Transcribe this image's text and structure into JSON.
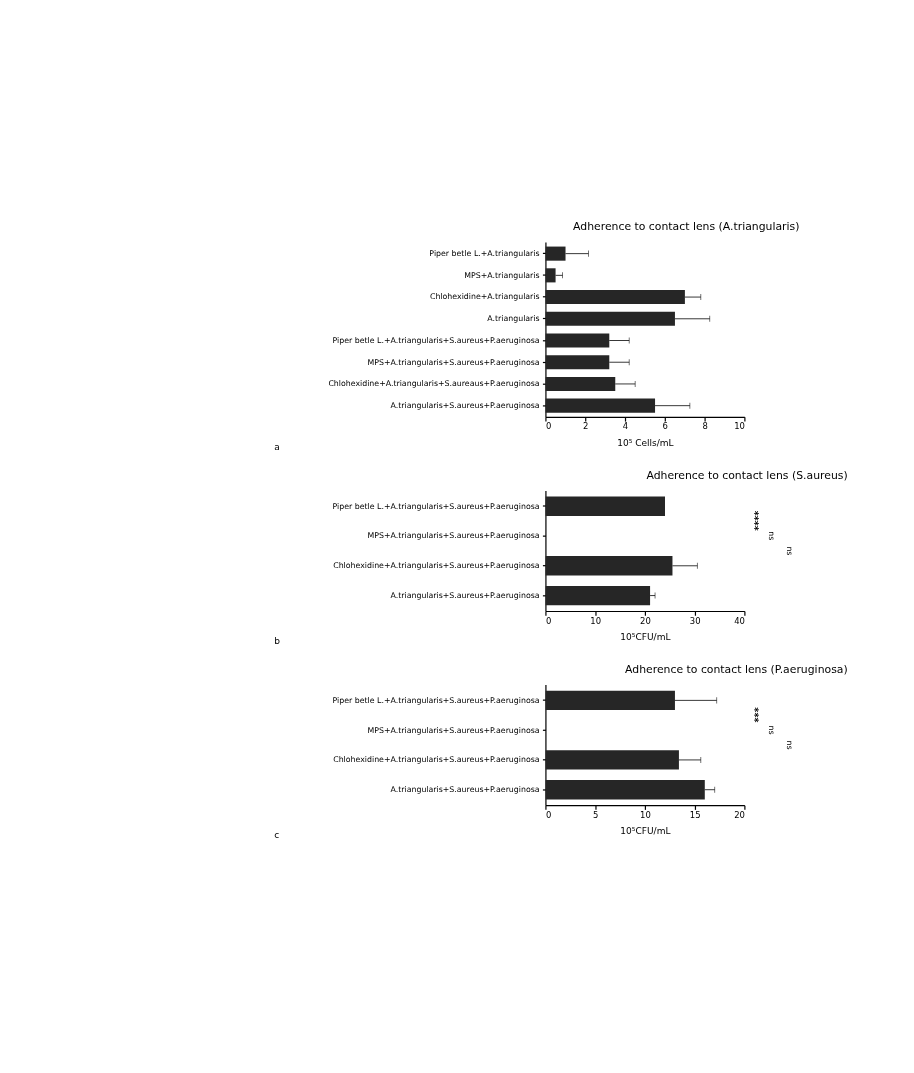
{
  "chart_data": [
    {
      "type": "bar",
      "orientation": "horizontal",
      "title": "Adherence to contact lens (A.triangularis)",
      "xlabel": "10⁵ Cells/mL",
      "categories": [
        "Piper betle L.+A.triangularis",
        "MPS+A.triangularis",
        "Chlohexidine+A.triangularis",
        "A.triangularis",
        "Piper betle L.+A.triangularis+S.aureus+P.aeruginosa",
        "MPS+A.triangularis+S.aureus+P.aeruginosa",
        "Chlohexidine+A.triangularis+S.aureaus+P.aeruginosa",
        "A.triangularis+S.aureus+P.aeruginosa"
      ],
      "values": [
        1.0,
        0.5,
        7.0,
        6.5,
        3.2,
        3.2,
        3.5,
        5.5
      ],
      "errors": [
        [
          1.0,
          2.15
        ],
        [
          0.5,
          0.85
        ],
        [
          7.0,
          7.8
        ],
        [
          6.5,
          8.25
        ],
        [
          3.2,
          4.2
        ],
        [
          3.2,
          4.2
        ],
        [
          3.5,
          4.5
        ],
        [
          5.5,
          7.25
        ]
      ],
      "color": "#262626",
      "xlim": [
        0,
        10
      ],
      "xticks": [
        0,
        2,
        4,
        6,
        8,
        10
      ],
      "grid": false,
      "annotations": [
        "a"
      ]
    },
    {
      "type": "bar",
      "orientation": "horizontal",
      "title": "Adherence to contact lens (S.aureus)",
      "xlabel": "10⁵CFU/mL",
      "categories": [
        "Piper betle L.+A.triangularis+S.aureus+P.aeruginosa",
        "MPS+A.triangularis+S.aureus+P.aeruginosa",
        "Chlohexidine+A.triangularis+S.aureus+P.aeruginosa",
        "A.triangularis+S.aureus+P.aeruginosa"
      ],
      "values": [
        24,
        0,
        25.5,
        21
      ],
      "errors": [
        null,
        null,
        [
          25.5,
          30.5
        ],
        [
          21,
          22
        ]
      ],
      "color": "#262626",
      "xlim": [
        0,
        40
      ],
      "xticks": [
        0,
        10,
        20,
        30,
        40
      ],
      "grid": false,
      "annotations": [
        "****",
        "ns",
        "ns",
        "b"
      ]
    },
    {
      "type": "bar",
      "orientation": "horizontal",
      "title": "Adherence to contact lens (P.aeruginosa)",
      "xlabel": "10⁵CFU/mL",
      "categories": [
        "Piper betle L.+A.triangularis+S.aureus+P.aeruginosa",
        "MPS+A.triangularis+S.aureus+P.aeruginosa",
        "Chlohexidine+A.triangularis+S.aureus+P.aeruginosa",
        "A.triangularis+S.aureus+P.aeruginosa"
      ],
      "values": [
        13,
        0,
        13.4,
        16
      ],
      "errors": [
        [
          13,
          17.2
        ],
        null,
        [
          13.4,
          15.6
        ],
        [
          16,
          17
        ]
      ],
      "color": "#262626",
      "xlim": [
        0,
        20
      ],
      "xticks": [
        0,
        5,
        10,
        15,
        20
      ],
      "grid": false,
      "annotations": [
        "***",
        "ns",
        "ns",
        "c"
      ]
    }
  ]
}
